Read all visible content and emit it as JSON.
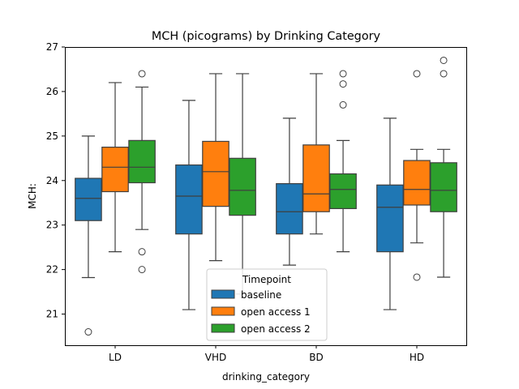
{
  "chart_data": {
    "type": "box",
    "title": "MCH (picograms) by Drinking Category",
    "xlabel": "drinking_category",
    "ylabel": "MCH:",
    "ylim": [
      20.3,
      27.0
    ],
    "yticks": [
      21,
      22,
      23,
      24,
      25,
      26,
      27
    ],
    "categories": [
      "LD",
      "VHD",
      "BD",
      "HD"
    ],
    "legend": {
      "title": "Timepoint",
      "placement": "lower-center"
    },
    "series": [
      {
        "name": "baseline",
        "color": "#1f77b4",
        "boxes": [
          {
            "whisker_low": 21.82,
            "q1": 23.1,
            "median": 23.6,
            "q3": 24.05,
            "whisker_high": 25.0,
            "outliers": [
              20.6
            ]
          },
          {
            "whisker_low": 21.1,
            "q1": 22.8,
            "median": 23.65,
            "q3": 24.35,
            "whisker_high": 25.8,
            "outliers": []
          },
          {
            "whisker_low": 22.1,
            "q1": 22.8,
            "median": 23.3,
            "q3": 23.93,
            "whisker_high": 25.4,
            "outliers": []
          },
          {
            "whisker_low": 21.1,
            "q1": 22.4,
            "median": 23.4,
            "q3": 23.9,
            "whisker_high": 25.4,
            "outliers": []
          }
        ]
      },
      {
        "name": "open access 1",
        "color": "#ff7f0e",
        "boxes": [
          {
            "whisker_low": 22.4,
            "q1": 23.75,
            "median": 24.3,
            "q3": 24.75,
            "whisker_high": 26.2,
            "outliers": []
          },
          {
            "whisker_low": 22.2,
            "q1": 23.42,
            "median": 24.2,
            "q3": 24.88,
            "whisker_high": 26.4,
            "outliers": []
          },
          {
            "whisker_low": 22.8,
            "q1": 23.3,
            "median": 23.7,
            "q3": 24.8,
            "whisker_high": 26.4,
            "outliers": []
          },
          {
            "whisker_low": 22.6,
            "q1": 23.45,
            "median": 23.8,
            "q3": 24.45,
            "whisker_high": 24.7,
            "outliers": [
              26.4,
              21.83
            ]
          }
        ]
      },
      {
        "name": "open access 2",
        "color": "#2ca02c",
        "boxes": [
          {
            "whisker_low": 22.9,
            "q1": 23.95,
            "median": 24.3,
            "q3": 24.9,
            "whisker_high": 26.1,
            "outliers": [
              26.4,
              22.4,
              22.0
            ]
          },
          {
            "whisker_low": 21.45,
            "q1": 23.22,
            "median": 23.78,
            "q3": 24.5,
            "whisker_high": 26.4,
            "outliers": []
          },
          {
            "whisker_low": 22.4,
            "q1": 23.37,
            "median": 23.8,
            "q3": 24.15,
            "whisker_high": 24.9,
            "outliers": [
              26.4,
              26.17,
              25.7
            ]
          },
          {
            "whisker_low": 21.83,
            "q1": 23.3,
            "median": 23.78,
            "q3": 24.4,
            "whisker_high": 24.7,
            "outliers": [
              26.7,
              26.4
            ]
          }
        ]
      }
    ]
  }
}
